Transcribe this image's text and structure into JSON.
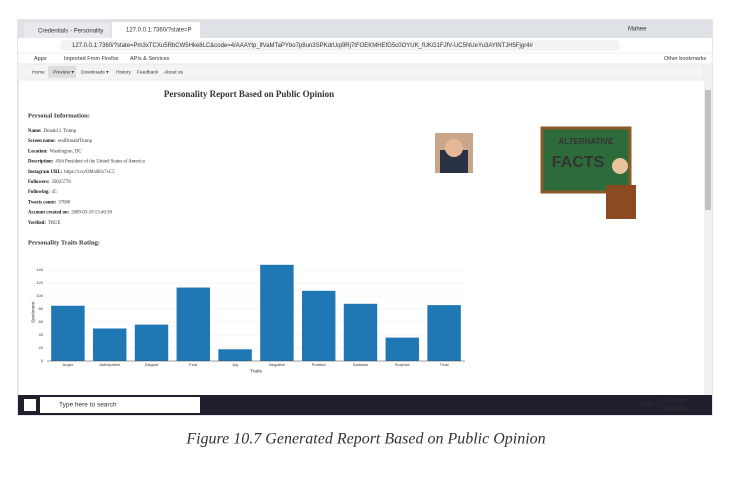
{
  "browser": {
    "tabs": [
      "Credentials - Personality",
      "127.0.0.1:7360/?state=P"
    ],
    "window_user": "Mahee",
    "url": "127.0.0.1:7360/?state=Pm3xTCXu5RbCW5Hke8LC&code=4/AAAYtp_lfVaMTaPYbo7p8un3SPKdrUqi9Rj7tFOEKMHEfG5c0OYUK_fUKG1FJfV-UC5NUeYu3AYlNTJH5Fjgr4#",
    "bookmarks": [
      "Apps",
      "Imported From Firefox",
      "APIs & Services"
    ],
    "other_bookmarks": "Other bookmarks"
  },
  "nav": [
    "Home",
    "Preview ▾",
    "Downloads ▾",
    "History",
    "Feedback",
    "About us"
  ],
  "report": {
    "title": "Personality Report Based on Public Opinion",
    "personal_heading": "Personal Information:",
    "fields": [
      {
        "label": "Name:",
        "value": "Donald J. Trump"
      },
      {
        "label": "Screen name:",
        "value": "realDonaldTrump"
      },
      {
        "label": "Location:",
        "value": "Washington, DC"
      },
      {
        "label": "Description:",
        "value": "45th President of the United States of America"
      },
      {
        "label": "Instagram URL:",
        "value": "https://t.co/OMxB0x7xC5"
      },
      {
        "label": "Followers:",
        "value": "50025776"
      },
      {
        "label": "Following:",
        "value": "45"
      },
      {
        "label": "Tweets count:",
        "value": "37060"
      },
      {
        "label": "Account created on:",
        "value": "2009-03-18 13:46:38"
      },
      {
        "label": "Verified:",
        "value": "TRUE"
      }
    ],
    "image_text": [
      "ALTERNATIVE",
      "FACTS"
    ],
    "traits_heading": "Personality Traits Rating:"
  },
  "chart_data": {
    "type": "bar",
    "categories": [
      "Anger",
      "Anticipation",
      "Disgust",
      "Fear",
      "Joy",
      "Negative",
      "Positive",
      "Sadness",
      "Surprise",
      "Trust"
    ],
    "values": [
      85,
      50,
      56,
      113,
      18,
      148,
      108,
      88,
      36,
      86
    ],
    "color": "#1f77b4",
    "xlabel": "Traits",
    "ylabel": "Sentiment",
    "ylim": [
      0,
      150
    ],
    "yticks": [
      0,
      20,
      40,
      60,
      80,
      100,
      120,
      140
    ],
    "grid": true
  },
  "taskbar": {
    "search": "Type here to search",
    "language": "ENG",
    "time": "07:06 PM",
    "date": "08-04-2018"
  },
  "caption": "Figure 10.7 Generated Report Based on Public Opinion"
}
